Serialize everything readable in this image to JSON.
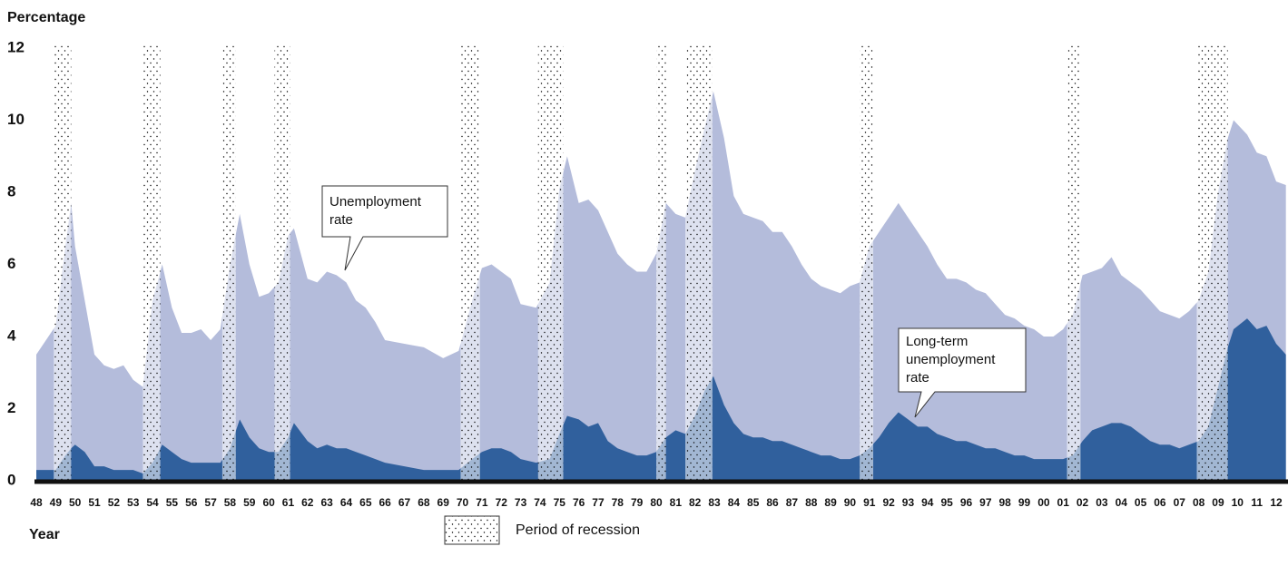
{
  "chart_data": {
    "type": "area",
    "y_label": "Percentage",
    "x_label": "Year",
    "xlim": [
      1948,
      2012.6
    ],
    "ylim": [
      0,
      12
    ],
    "yticks": [
      0,
      2,
      4,
      6,
      8,
      10,
      12
    ],
    "xticks": [
      {
        "value": 1948,
        "label": "48"
      },
      {
        "value": 1949,
        "label": "49"
      },
      {
        "value": 1950,
        "label": "50"
      },
      {
        "value": 1951,
        "label": "51"
      },
      {
        "value": 1952,
        "label": "52"
      },
      {
        "value": 1953,
        "label": "53"
      },
      {
        "value": 1954,
        "label": "54"
      },
      {
        "value": 1955,
        "label": "55"
      },
      {
        "value": 1956,
        "label": "56"
      },
      {
        "value": 1957,
        "label": "57"
      },
      {
        "value": 1958,
        "label": "58"
      },
      {
        "value": 1959,
        "label": "59"
      },
      {
        "value": 1960,
        "label": "60"
      },
      {
        "value": 1961,
        "label": "61"
      },
      {
        "value": 1962,
        "label": "62"
      },
      {
        "value": 1963,
        "label": "63"
      },
      {
        "value": 1964,
        "label": "64"
      },
      {
        "value": 1965,
        "label": "65"
      },
      {
        "value": 1966,
        "label": "66"
      },
      {
        "value": 1967,
        "label": "67"
      },
      {
        "value": 1968,
        "label": "68"
      },
      {
        "value": 1969,
        "label": "69"
      },
      {
        "value": 1970,
        "label": "70"
      },
      {
        "value": 1971,
        "label": "71"
      },
      {
        "value": 1972,
        "label": "72"
      },
      {
        "value": 1973,
        "label": "73"
      },
      {
        "value": 1974,
        "label": "74"
      },
      {
        "value": 1975,
        "label": "75"
      },
      {
        "value": 1976,
        "label": "76"
      },
      {
        "value": 1977,
        "label": "77"
      },
      {
        "value": 1978,
        "label": "78"
      },
      {
        "value": 1979,
        "label": "79"
      },
      {
        "value": 1980,
        "label": "80"
      },
      {
        "value": 1981,
        "label": "81"
      },
      {
        "value": 1982,
        "label": "82"
      },
      {
        "value": 1983,
        "label": "83"
      },
      {
        "value": 1984,
        "label": "84"
      },
      {
        "value": 1985,
        "label": "85"
      },
      {
        "value": 1986,
        "label": "86"
      },
      {
        "value": 1987,
        "label": "87"
      },
      {
        "value": 1988,
        "label": "88"
      },
      {
        "value": 1989,
        "label": "89"
      },
      {
        "value": 1990,
        "label": "90"
      },
      {
        "value": 1991,
        "label": "91"
      },
      {
        "value": 1992,
        "label": "92"
      },
      {
        "value": 1993,
        "label": "93"
      },
      {
        "value": 1994,
        "label": "94"
      },
      {
        "value": 1995,
        "label": "95"
      },
      {
        "value": 1996,
        "label": "96"
      },
      {
        "value": 1997,
        "label": "97"
      },
      {
        "value": 1998,
        "label": "98"
      },
      {
        "value": 1999,
        "label": "99"
      },
      {
        "value": 2000,
        "label": "00"
      },
      {
        "value": 2001,
        "label": "01"
      },
      {
        "value": 2002,
        "label": "02"
      },
      {
        "value": 2003,
        "label": "03"
      },
      {
        "value": 2004,
        "label": "04"
      },
      {
        "value": 2005,
        "label": "05"
      },
      {
        "value": 2006,
        "label": "06"
      },
      {
        "value": 2007,
        "label": "07"
      },
      {
        "value": 2008,
        "label": "08"
      },
      {
        "value": 2009,
        "label": "09"
      },
      {
        "value": 2010,
        "label": "10"
      },
      {
        "value": 2011,
        "label": "11"
      },
      {
        "value": 2012,
        "label": "12"
      }
    ],
    "x": [
      1948.0,
      1948.5,
      1949.0,
      1949.5,
      1949.8,
      1950.0,
      1950.5,
      1951.0,
      1951.5,
      1952.0,
      1952.5,
      1953.0,
      1953.5,
      1954.0,
      1954.5,
      1955.0,
      1955.5,
      1956.0,
      1956.5,
      1957.0,
      1957.5,
      1958.0,
      1958.5,
      1959.0,
      1959.5,
      1960.0,
      1960.5,
      1961.0,
      1961.3,
      1962.0,
      1962.5,
      1963.0,
      1963.5,
      1964.0,
      1964.5,
      1965.0,
      1965.5,
      1966.0,
      1967.0,
      1968.0,
      1969.0,
      1969.8,
      1970.5,
      1971.0,
      1971.5,
      1972.0,
      1972.5,
      1973.0,
      1973.8,
      1974.5,
      1975.0,
      1975.4,
      1976.0,
      1976.5,
      1977.0,
      1977.5,
      1978.0,
      1978.5,
      1979.0,
      1979.5,
      1980.0,
      1980.5,
      1981.0,
      1981.5,
      1982.0,
      1982.5,
      1982.95,
      1983.5,
      1984.0,
      1984.5,
      1985.0,
      1985.5,
      1986.0,
      1986.5,
      1987.0,
      1987.5,
      1988.0,
      1988.5,
      1989.0,
      1989.5,
      1990.0,
      1990.5,
      1991.0,
      1991.5,
      1992.0,
      1992.5,
      1993.0,
      1993.5,
      1994.0,
      1994.5,
      1995.0,
      1995.5,
      1996.0,
      1996.5,
      1997.0,
      1997.5,
      1998.0,
      1998.5,
      1999.0,
      1999.5,
      2000.0,
      2000.5,
      2001.0,
      2001.5,
      2002.0,
      2002.5,
      2003.0,
      2003.5,
      2004.0,
      2004.5,
      2005.0,
      2005.5,
      2006.0,
      2006.5,
      2007.0,
      2007.5,
      2008.0,
      2008.5,
      2009.0,
      2009.5,
      2009.8,
      2010.5,
      2011.0,
      2011.5,
      2012.0,
      2012.5
    ],
    "series": [
      {
        "name": "Unemployment rate",
        "color": "#b4bcdb",
        "values": [
          3.5,
          3.9,
          4.3,
          6.5,
          7.7,
          6.5,
          5.0,
          3.5,
          3.2,
          3.1,
          3.2,
          2.8,
          2.6,
          5.0,
          6.0,
          4.8,
          4.1,
          4.1,
          4.2,
          3.9,
          4.2,
          6.0,
          7.4,
          6.0,
          5.1,
          5.2,
          5.5,
          6.8,
          7.0,
          5.6,
          5.5,
          5.8,
          5.7,
          5.5,
          5.0,
          4.8,
          4.4,
          3.9,
          3.8,
          3.7,
          3.4,
          3.6,
          5.0,
          5.9,
          6.0,
          5.8,
          5.6,
          4.9,
          4.8,
          5.5,
          8.1,
          9.0,
          7.7,
          7.8,
          7.5,
          6.9,
          6.3,
          6.0,
          5.8,
          5.8,
          6.3,
          7.7,
          7.4,
          7.3,
          8.6,
          9.8,
          10.8,
          9.5,
          7.9,
          7.4,
          7.3,
          7.2,
          6.9,
          6.9,
          6.5,
          6.0,
          5.6,
          5.4,
          5.3,
          5.2,
          5.4,
          5.5,
          6.5,
          6.9,
          7.3,
          7.7,
          7.3,
          6.9,
          6.5,
          6.0,
          5.6,
          5.6,
          5.5,
          5.3,
          5.2,
          4.9,
          4.6,
          4.5,
          4.3,
          4.2,
          4.0,
          4.0,
          4.2,
          4.6,
          5.7,
          5.8,
          5.9,
          6.2,
          5.7,
          5.5,
          5.3,
          5.0,
          4.7,
          4.6,
          4.5,
          4.7,
          5.0,
          5.8,
          8.0,
          9.5,
          10.0,
          9.6,
          9.1,
          9.0,
          8.3,
          8.2
        ]
      },
      {
        "name": "Long-term unemployment rate",
        "color": "#30609d",
        "values": [
          0.3,
          0.3,
          0.3,
          0.7,
          0.9,
          1.0,
          0.8,
          0.4,
          0.4,
          0.3,
          0.3,
          0.3,
          0.2,
          0.5,
          1.0,
          0.8,
          0.6,
          0.5,
          0.5,
          0.5,
          0.5,
          0.9,
          1.7,
          1.2,
          0.9,
          0.8,
          0.8,
          1.2,
          1.6,
          1.1,
          0.9,
          1.0,
          0.9,
          0.9,
          0.8,
          0.7,
          0.6,
          0.5,
          0.4,
          0.3,
          0.3,
          0.3,
          0.6,
          0.8,
          0.9,
          0.9,
          0.8,
          0.6,
          0.5,
          0.6,
          1.3,
          1.8,
          1.7,
          1.5,
          1.6,
          1.1,
          0.9,
          0.8,
          0.7,
          0.7,
          0.8,
          1.2,
          1.4,
          1.3,
          1.8,
          2.5,
          2.9,
          2.1,
          1.6,
          1.3,
          1.2,
          1.2,
          1.1,
          1.1,
          1.0,
          0.9,
          0.8,
          0.7,
          0.7,
          0.6,
          0.6,
          0.7,
          0.9,
          1.2,
          1.6,
          1.9,
          1.7,
          1.5,
          1.5,
          1.3,
          1.2,
          1.1,
          1.1,
          1.0,
          0.9,
          0.9,
          0.8,
          0.7,
          0.7,
          0.6,
          0.6,
          0.6,
          0.6,
          0.7,
          1.1,
          1.4,
          1.5,
          1.6,
          1.6,
          1.5,
          1.3,
          1.1,
          1.0,
          1.0,
          0.9,
          1.0,
          1.1,
          1.5,
          2.6,
          3.7,
          4.2,
          4.5,
          4.2,
          4.3,
          3.8,
          3.5
        ]
      }
    ],
    "recessions": [
      [
        1948.9,
        1949.8
      ],
      [
        1953.5,
        1954.4
      ],
      [
        1957.6,
        1958.3
      ],
      [
        1960.3,
        1961.1
      ],
      [
        1969.9,
        1970.9
      ],
      [
        1973.9,
        1975.2
      ],
      [
        1980.0,
        1980.5
      ],
      [
        1981.5,
        1982.9
      ],
      [
        1990.5,
        1991.2
      ],
      [
        2001.2,
        2001.9
      ],
      [
        2007.9,
        2009.5
      ]
    ],
    "recession_label": "Period of recession",
    "annotations": [
      {
        "text": [
          "Unemployment",
          "rate"
        ]
      },
      {
        "text": [
          "Long-term",
          "unemployment",
          "rate"
        ]
      }
    ]
  }
}
